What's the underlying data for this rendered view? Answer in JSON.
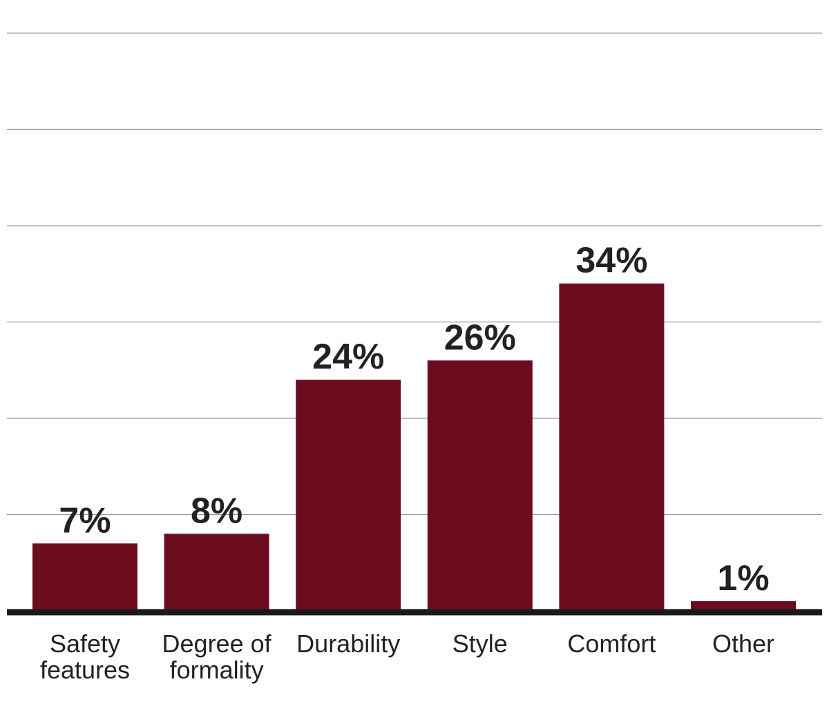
{
  "chart_data": {
    "type": "bar",
    "categories": [
      [
        "Safety",
        "features"
      ],
      [
        "Degree of",
        "formality"
      ],
      [
        "Durability"
      ],
      [
        "Style"
      ],
      [
        "Comfort"
      ],
      [
        "Other"
      ]
    ],
    "values": [
      7,
      8,
      24,
      26,
      34,
      1
    ],
    "value_labels": [
      "7%",
      "8%",
      "24%",
      "26%",
      "34%",
      "1%"
    ],
    "ylim": [
      0,
      60
    ],
    "gridlines": [
      10,
      20,
      30,
      40,
      50,
      60
    ],
    "grid": true,
    "bar_color": "#6d0c1f",
    "title": "",
    "xlabel": "",
    "ylabel": ""
  }
}
